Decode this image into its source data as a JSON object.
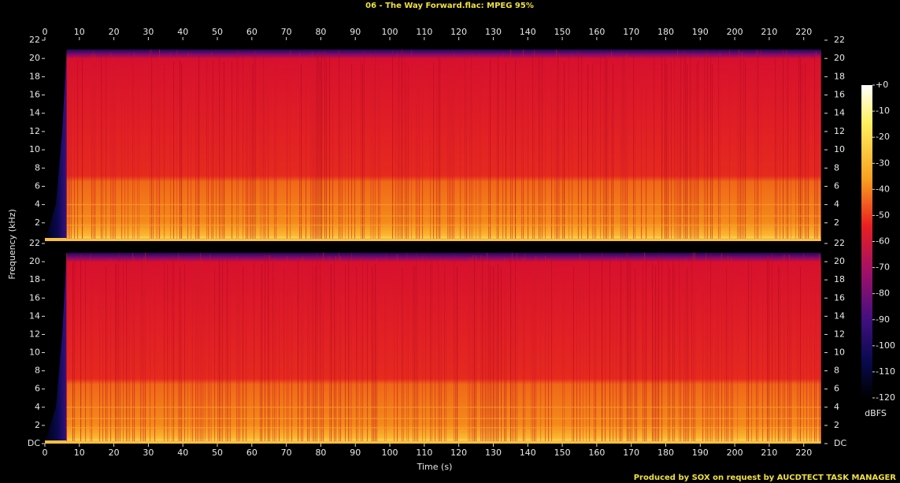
{
  "title": "06 - The Way Forward.flac: MPEG 95%",
  "footer": "Produced by SOX on request by AUCDTECT TASK MANAGER",
  "y_label": "Frequency (kHz)",
  "chart_data": [
    {
      "type": "spectrogram",
      "xlim": [
        0,
        226
      ],
      "xticks": [
        0,
        10,
        20,
        30,
        40,
        50,
        60,
        70,
        80,
        90,
        100,
        110,
        120,
        130,
        140,
        150,
        160,
        170,
        180,
        190,
        200,
        210,
        220
      ],
      "ylim": [
        0,
        22
      ],
      "yticks": [
        2,
        4,
        6,
        8,
        10,
        12,
        14,
        16,
        18,
        20,
        22
      ]
    },
    {
      "type": "spectrogram",
      "xlim": [
        0,
        226
      ],
      "xticks": [
        0,
        10,
        20,
        30,
        40,
        50,
        60,
        70,
        80,
        90,
        100,
        110,
        120,
        130,
        140,
        150,
        160,
        170,
        180,
        190,
        200,
        210,
        220
      ],
      "ylim": [
        0,
        22
      ],
      "yticks": [
        {
          "value": 0,
          "label": "DC"
        },
        2,
        4,
        6,
        8,
        10,
        12,
        14,
        16,
        18,
        20,
        22
      ],
      "x_label": "Time (s)"
    }
  ],
  "colorbar": {
    "label": "dBFS",
    "lim": [
      -120,
      0
    ],
    "ticks": [
      {
        "value": 0,
        "label": "+0"
      },
      -10,
      -20,
      -30,
      -40,
      -50,
      -60,
      -70,
      -80,
      -90,
      -100,
      -110,
      -120
    ]
  }
}
